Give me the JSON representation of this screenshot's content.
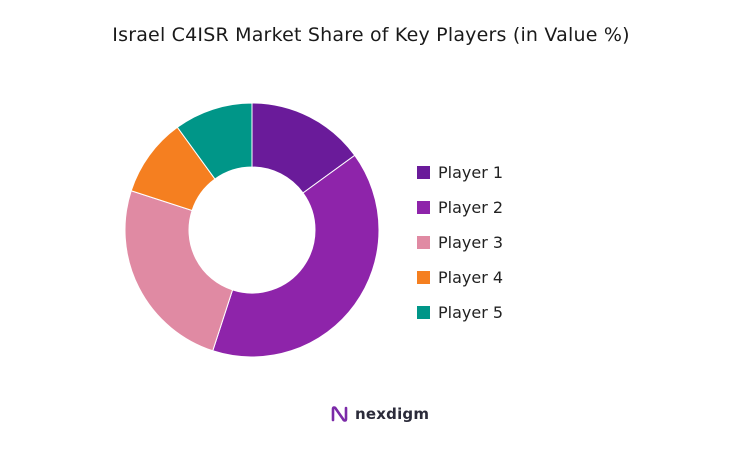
{
  "chart_data": {
    "type": "pie",
    "title": "Israel C4ISR Market Share of Key Players (in Value %)",
    "donut": true,
    "legend_position": "right",
    "series": [
      {
        "name": "Player 1",
        "value": 15,
        "color": "#6a1b9a"
      },
      {
        "name": "Player 2",
        "value": 40,
        "color": "#8e24aa"
      },
      {
        "name": "Player 3",
        "value": 25,
        "color": "#e08aa3"
      },
      {
        "name": "Player 4",
        "value": 10,
        "color": "#f57f20"
      },
      {
        "name": "Player 5",
        "value": 10,
        "color": "#009688"
      }
    ]
  },
  "brand": {
    "name": "nexdigm",
    "icon": "nexdigm-logo-icon"
  }
}
